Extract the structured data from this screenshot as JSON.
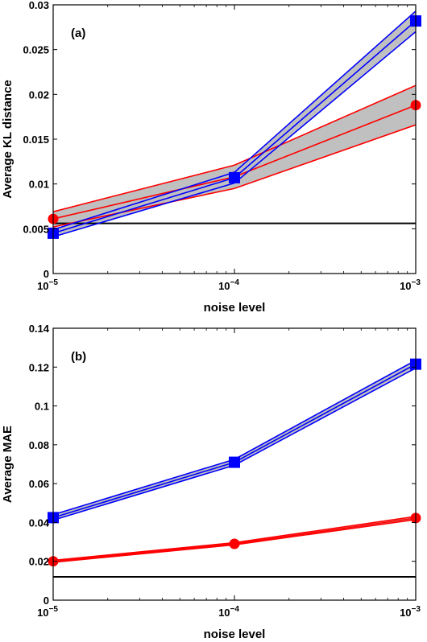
{
  "chart_data": [
    {
      "type": "line",
      "panel_label": "(a)",
      "xlabel": "noise level",
      "ylabel": "Average KL distance",
      "x_scale": "log",
      "x": [
        1e-05,
        0.0001,
        0.001
      ],
      "x_ticks": [
        {
          "base": "10",
          "exp": "−5",
          "value": 1e-05
        },
        {
          "base": "10",
          "exp": "−4",
          "value": 0.0001
        },
        {
          "base": "10",
          "exp": "−3",
          "value": 0.001
        }
      ],
      "ylim": [
        0,
        0.03
      ],
      "y_ticks": [
        {
          "value": 0,
          "label": "0"
        },
        {
          "value": 0.005,
          "label": "0.005"
        },
        {
          "value": 0.01,
          "label": "0.01"
        },
        {
          "value": 0.015,
          "label": "0.015"
        },
        {
          "value": 0.02,
          "label": "0.02"
        },
        {
          "value": 0.025,
          "label": "0.025"
        },
        {
          "value": 0.03,
          "label": "0.03"
        }
      ],
      "grid": false,
      "series": [
        {
          "color": "#ff0000",
          "marker": "circle",
          "values": [
            0.0061,
            0.0108,
            0.0188
          ],
          "lower": [
            0.0052,
            0.0095,
            0.0166
          ],
          "upper": [
            0.0069,
            0.0121,
            0.021
          ]
        },
        {
          "color": "#0000ff",
          "marker": "square",
          "values": [
            0.0045,
            0.0107,
            0.0282
          ],
          "lower": [
            0.0041,
            0.0101,
            0.027
          ],
          "upper": [
            0.0049,
            0.0113,
            0.0293
          ]
        }
      ],
      "reference_line": {
        "color": "#000000",
        "value": 0.0056
      }
    },
    {
      "type": "line",
      "panel_label": "(b)",
      "xlabel": "noise level",
      "ylabel": "Average MAE",
      "x_scale": "log",
      "x": [
        1e-05,
        0.0001,
        0.001
      ],
      "x_ticks": [
        {
          "base": "10",
          "exp": "−5",
          "value": 1e-05
        },
        {
          "base": "10",
          "exp": "−4",
          "value": 0.0001
        },
        {
          "base": "10",
          "exp": "−3",
          "value": 0.001
        }
      ],
      "ylim": [
        0,
        0.14
      ],
      "y_ticks": [
        {
          "value": 0,
          "label": "0"
        },
        {
          "value": 0.02,
          "label": "0.02"
        },
        {
          "value": 0.04,
          "label": "0.04"
        },
        {
          "value": 0.06,
          "label": "0.06"
        },
        {
          "value": 0.08,
          "label": "0.08"
        },
        {
          "value": 0.1,
          "label": "0.1"
        },
        {
          "value": 0.12,
          "label": "0.12"
        },
        {
          "value": 0.14,
          "label": "0.14"
        }
      ],
      "grid": false,
      "series": [
        {
          "color": "#ff0000",
          "marker": "circle",
          "values": [
            0.02,
            0.029,
            0.0423
          ],
          "lower": [
            0.0195,
            0.0285,
            0.0415
          ],
          "upper": [
            0.0205,
            0.0296,
            0.0431
          ]
        },
        {
          "color": "#0000ff",
          "marker": "square",
          "values": [
            0.0425,
            0.071,
            0.1215
          ],
          "lower": [
            0.0412,
            0.0695,
            0.1195
          ],
          "upper": [
            0.044,
            0.0725,
            0.1235
          ]
        }
      ],
      "reference_line": {
        "color": "#000000",
        "value": 0.012
      }
    }
  ]
}
